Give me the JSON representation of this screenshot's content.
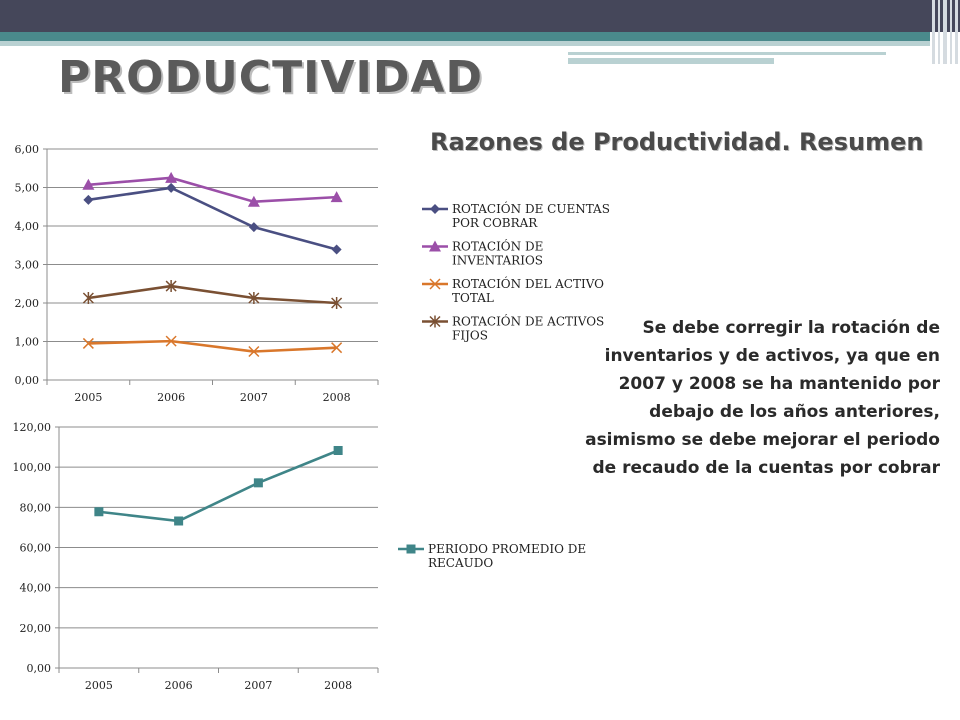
{
  "slide": {
    "title": "PRODUCTIVIDAD",
    "subtitle": "Razones de Productividad. Resumen",
    "description": "Se debe corregir la rotación de inventarios y de activos, ya que en 2007 y 2008 se ha mantenido por debajo de los años anteriores, asimismo se debe mejorar el periodo de recaudo de la cuentas por cobrar"
  },
  "chart_data": [
    {
      "type": "line",
      "categories": [
        "2005",
        "2006",
        "2007",
        "2008"
      ],
      "ylim": [
        0,
        6
      ],
      "yticks": [
        "0,00",
        "1,00",
        "2,00",
        "3,00",
        "4,00",
        "5,00",
        "6,00"
      ],
      "grid": true,
      "legend": "right",
      "series": [
        {
          "name": "ROTACIÓN DE CUENTAS POR COBRAR",
          "legend_lines": [
            "ROTACIÓN DE CUENTAS",
            "POR COBRAR"
          ],
          "values": [
            4.68,
            4.99,
            3.97,
            3.39
          ],
          "color": "#4a4f82",
          "marker": "diamond"
        },
        {
          "name": "ROTACIÓN DE INVENTARIOS",
          "legend_lines": [
            "ROTACIÓN DE",
            "INVENTARIOS"
          ],
          "values": [
            5.07,
            5.25,
            4.63,
            4.75
          ],
          "color": "#9b4fa8",
          "marker": "triangle"
        },
        {
          "name": "ROTACIÓN DEL ACTIVO TOTAL",
          "legend_lines": [
            "ROTACIÓN DEL ACTIVO",
            "TOTAL"
          ],
          "values": [
            0.95,
            1.01,
            0.74,
            0.84
          ],
          "color": "#d9772b",
          "marker": "x"
        },
        {
          "name": "ROTACIÓN DE ACTIVOS FIJOS",
          "legend_lines": [
            "ROTACIÓN DE ACTIVOS",
            "FIJOS"
          ],
          "values": [
            2.13,
            2.44,
            2.13,
            2.0
          ],
          "color": "#7a5033",
          "marker": "star"
        }
      ]
    },
    {
      "type": "line",
      "categories": [
        "2005",
        "2006",
        "2007",
        "2008"
      ],
      "ylim": [
        0,
        120
      ],
      "yticks": [
        "0,00",
        "20,00",
        "40,00",
        "60,00",
        "80,00",
        "100,00",
        "120,00"
      ],
      "grid": true,
      "legend": "right",
      "series": [
        {
          "name": "PERIODO PROMEDIO DE RECAUDO",
          "legend_lines": [
            "PERIODO PROMEDIO DE",
            "RECAUDO"
          ],
          "values": [
            77.8,
            73.2,
            92.2,
            108.3
          ],
          "color": "#3f8588",
          "marker": "square"
        }
      ]
    }
  ]
}
